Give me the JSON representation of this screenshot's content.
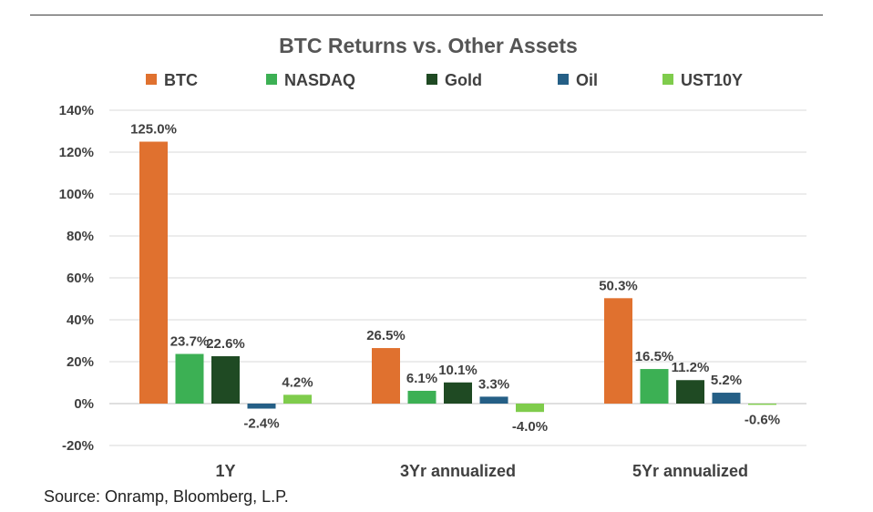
{
  "source_note": "Source: Onramp, Bloomberg, L.P.",
  "chart_data": {
    "type": "bar",
    "title": "BTC Returns vs. Other Assets",
    "xlabel": "",
    "ylabel": "",
    "categories": [
      "1Y",
      "3Yr annualized",
      "5Yr annualized"
    ],
    "series": [
      {
        "name": "BTC",
        "color": "#E0712F",
        "values": [
          125.0,
          26.5,
          50.3
        ]
      },
      {
        "name": "NASDAQ",
        "color": "#3CB054",
        "values": [
          23.7,
          6.1,
          16.5
        ]
      },
      {
        "name": "Gold",
        "color": "#1F4A23",
        "values": [
          22.6,
          10.1,
          11.2
        ]
      },
      {
        "name": "Oil",
        "color": "#255F86",
        "values": [
          -2.4,
          3.3,
          5.2
        ]
      },
      {
        "name": "UST10Y",
        "color": "#7FCC4C",
        "values": [
          4.2,
          -4.0,
          -0.6
        ]
      }
    ],
    "ylim": [
      -20,
      140
    ],
    "y_ticks": [
      -20,
      0,
      20,
      40,
      60,
      80,
      100,
      120,
      140
    ],
    "y_tick_labels": [
      "-20%",
      "0%",
      "20%",
      "40%",
      "60%",
      "80%",
      "100%",
      "120%",
      "140%"
    ],
    "data_labels": [
      [
        "125.0%",
        "26.5%",
        "50.3%"
      ],
      [
        "23.7%",
        "6.1%",
        "16.5%"
      ],
      [
        "22.6%",
        "10.1%",
        "11.2%"
      ],
      [
        "-2.4%",
        "3.3%",
        "5.2%"
      ],
      [
        "4.2%",
        "-4.0%",
        "-0.6%"
      ]
    ],
    "grid": true,
    "legend_position": "top"
  }
}
